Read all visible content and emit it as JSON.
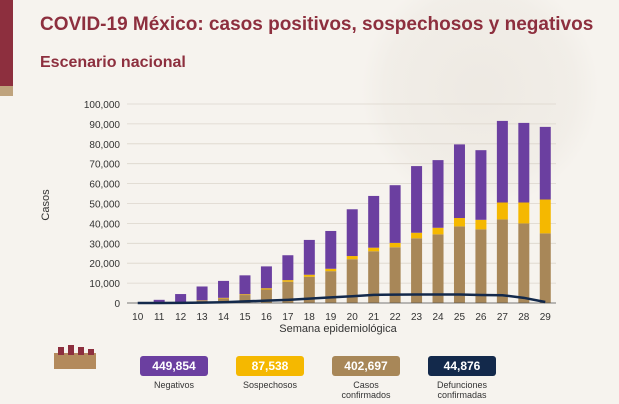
{
  "header": {
    "title": "COVID-19 México: casos positivos, sospechosos y negativos",
    "subtitle": "Escenario nacional"
  },
  "colors": {
    "brand": "#8d2f3e",
    "negativos": "#6b3fa0",
    "sospechosos": "#f5b800",
    "confirmados": "#a88758",
    "defunciones": "#13294b"
  },
  "chart_data": {
    "type": "bar",
    "stacked": true,
    "xlabel": "Semana epidemiológica",
    "ylabel": "Casos",
    "ylim": [
      0,
      100000
    ],
    "yticks": [
      "0",
      "10,000",
      "20,000",
      "30,000",
      "40,000",
      "50,000",
      "60,000",
      "70,000",
      "80,000",
      "90,000",
      "100,000"
    ],
    "categories": [
      "10",
      "11",
      "12",
      "13",
      "14",
      "15",
      "16",
      "17",
      "18",
      "19",
      "20",
      "21",
      "22",
      "23",
      "24",
      "25",
      "26",
      "27",
      "28",
      "29"
    ],
    "series": [
      {
        "name": "Casos confirmados",
        "color": "#a88758",
        "values": [
          0,
          100,
          400,
          1100,
          2300,
          4000,
          6800,
          10700,
          13200,
          16000,
          22000,
          26000,
          28000,
          32500,
          34500,
          38500,
          37000,
          42000,
          40000,
          35000
        ]
      },
      {
        "name": "Sospechosos",
        "color": "#f5b800",
        "values": [
          0,
          0,
          100,
          200,
          300,
          400,
          600,
          800,
          1000,
          1200,
          1600,
          1800,
          2200,
          2800,
          3300,
          4200,
          4800,
          8500,
          10500,
          17000
        ]
      },
      {
        "name": "Negativos",
        "color": "#6b3fa0",
        "values": [
          0,
          1500,
          4000,
          7000,
          8500,
          9500,
          11000,
          12500,
          17500,
          19000,
          23500,
          26000,
          29000,
          33500,
          34000,
          37000,
          35000,
          41000,
          40000,
          36500
        ]
      }
    ],
    "line": {
      "name": "Defunciones confirmadas",
      "color": "#13294b",
      "values": [
        0,
        0,
        50,
        200,
        400,
        800,
        1200,
        1600,
        2200,
        2800,
        3400,
        4100,
        4200,
        4300,
        4300,
        4300,
        4000,
        3900,
        2600,
        500
      ]
    }
  },
  "summary": [
    {
      "value": "449,854",
      "label": "Negativos",
      "color": "#6b3fa0"
    },
    {
      "value": "87,538",
      "label": "Sospechosos",
      "color": "#f5b800"
    },
    {
      "value": "402,697",
      "label": "Casos confirmados",
      "color": "#a88758"
    },
    {
      "value": "44,876",
      "label": "Defunciones confirmadas",
      "color": "#13294b"
    }
  ]
}
